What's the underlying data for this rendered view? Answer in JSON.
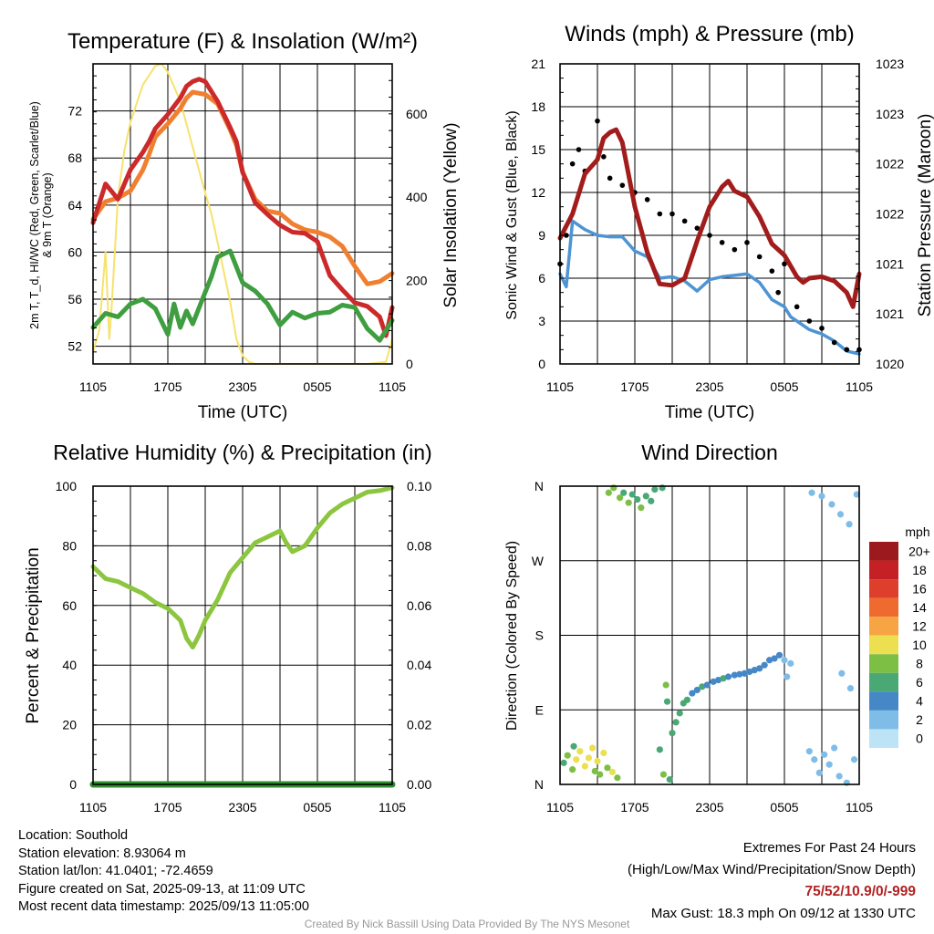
{
  "chart_data": [
    {
      "type": "line",
      "title": "Temperature (F) & Insolation (W/m²)",
      "xlabel": "Time (UTC)",
      "ylabel_left_lines": [
        "2m T, T_d, HI/WC (Red, Green, Scarlet/Blue)",
        "& 9m T (Orange)"
      ],
      "ylabel_right": "Solar Insolation (Yellow)",
      "x_ticks": [
        "1105",
        "1705",
        "2305",
        "0505",
        "1105"
      ],
      "y_ticks_left": [
        52,
        56,
        60,
        64,
        68,
        72
      ],
      "y_ticks_right": [
        0,
        200,
        400,
        600
      ],
      "ylim_left": [
        50.5,
        76
      ],
      "ylim_right": [
        0,
        720
      ],
      "series": [
        {
          "color": "#f08030",
          "x": [
            0,
            1,
            2,
            3,
            4,
            4.5,
            5,
            6,
            7,
            7.5,
            8,
            9,
            10,
            11,
            11.5,
            12,
            13,
            14,
            15,
            16,
            17,
            18,
            19,
            20,
            21,
            22,
            23,
            24
          ],
          "y": [
            62.8,
            64.3,
            64.6,
            65.2,
            67.0,
            68.3,
            69.8,
            70.9,
            72.2,
            73.1,
            73.6,
            73.4,
            72.6,
            70.4,
            69.1,
            66.8,
            64.5,
            63.5,
            63.3,
            62.4,
            61.9,
            61.7,
            61.3,
            60.5,
            58.8,
            57.3,
            57.5,
            58.2
          ]
        },
        {
          "color": "#cc2a2a",
          "x": [
            0,
            1,
            2,
            3,
            4,
            4.5,
            5,
            6,
            7,
            7.5,
            8,
            8.5,
            9,
            10,
            11,
            11.5,
            12,
            13,
            14,
            15,
            16,
            17,
            18,
            19,
            20,
            21,
            22,
            23,
            23.5,
            24
          ],
          "y": [
            62.5,
            65.8,
            64.5,
            67.0,
            68.5,
            69.4,
            70.5,
            71.7,
            73.1,
            74.1,
            74.5,
            74.7,
            74.5,
            72.8,
            70.6,
            69.4,
            66.8,
            64.2,
            63.2,
            62.3,
            61.7,
            61.6,
            60.9,
            58.0,
            56.8,
            55.7,
            55.4,
            54.5,
            52.9,
            55.3
          ]
        },
        {
          "color": "#3f9e3f",
          "x": [
            0,
            1,
            2,
            3,
            4,
            5,
            6,
            6.5,
            7,
            7.5,
            8,
            9,
            9.5,
            10,
            11,
            12,
            13,
            14,
            15,
            16,
            17,
            18,
            19,
            20,
            21,
            22,
            23,
            24
          ],
          "y": [
            53.6,
            54.8,
            54.5,
            55.6,
            56.0,
            55.2,
            53.0,
            55.6,
            53.6,
            55.0,
            53.9,
            56.6,
            57.9,
            59.6,
            60.1,
            57.4,
            56.7,
            55.6,
            53.8,
            54.9,
            54.4,
            54.8,
            54.9,
            55.5,
            55.3,
            53.5,
            52.5,
            54.2
          ]
        },
        {
          "color": "#f7e26b",
          "x": [
            0,
            0.5,
            1,
            1.3,
            1.5,
            2,
            2.5,
            3,
            4,
            5,
            5.5,
            6,
            7,
            8,
            9,
            9.5,
            10,
            11,
            11.5,
            12,
            12.5,
            13,
            14,
            18,
            22,
            23.5,
            24
          ],
          "y": [
            30,
            80,
            270,
            60,
            140,
            400,
            510,
            580,
            670,
            715,
            720,
            700,
            630,
            520,
            410,
            360,
            290,
            150,
            60,
            20,
            5,
            0,
            0,
            0,
            0,
            5,
            60
          ]
        }
      ]
    },
    {
      "type": "line",
      "title": "Winds (mph) & Pressure (mb)",
      "xlabel": "Time (UTC)",
      "ylabel_left": "Sonic Wind & Gust (Blue, Black)",
      "ylabel_right": "Station Pressure (Maroon)",
      "x_ticks": [
        "1105",
        "1705",
        "2305",
        "0505",
        "1105"
      ],
      "y_ticks_left": [
        0,
        3,
        6,
        9,
        12,
        15,
        18,
        21
      ],
      "y_ticks_right": [
        "1020",
        "1021",
        "1021",
        "1022",
        "1022",
        "1023",
        "1023"
      ],
      "ylim_left": [
        0,
        21
      ],
      "series": [
        {
          "color": "#4d94d4",
          "x": [
            0,
            0.5,
            1,
            2,
            3,
            4,
            5,
            6,
            7,
            8,
            9,
            10,
            11,
            12,
            13,
            14,
            15,
            16,
            17,
            18,
            18.5,
            19,
            20,
            21,
            22,
            23,
            24
          ],
          "y": [
            6.3,
            5.4,
            10.0,
            9.4,
            9.0,
            8.9,
            8.9,
            7.9,
            7.5,
            6.0,
            6.1,
            5.8,
            5.1,
            5.9,
            6.1,
            6.2,
            6.3,
            5.7,
            4.5,
            4.0,
            3.3,
            3.0,
            2.4,
            2.1,
            1.6,
            0.9,
            0.7
          ]
        },
        {
          "color": "#000000",
          "x": [
            0,
            0.5,
            1,
            1.5,
            2,
            3,
            3.5,
            4,
            5,
            6,
            7,
            8,
            9,
            10,
            11,
            12,
            13,
            14,
            15,
            16,
            17,
            17.5,
            18,
            19,
            20,
            21,
            22,
            23,
            24
          ],
          "y": [
            7.0,
            9.0,
            14.0,
            15.0,
            13.5,
            17.0,
            14.5,
            13.0,
            12.5,
            12.0,
            11.5,
            10.5,
            10.5,
            10.0,
            9.5,
            9.0,
            8.5,
            8.0,
            8.5,
            7.5,
            6.5,
            5.0,
            7.0,
            4.0,
            3.0,
            2.5,
            1.5,
            1.0,
            1.0
          ]
        },
        {
          "color": "#a21c1c",
          "x": [
            0,
            1,
            2,
            3,
            3.5,
            4,
            4.5,
            5,
            6,
            7,
            8,
            9,
            10,
            11,
            12,
            13,
            13.5,
            14,
            15,
            16,
            17,
            18,
            19,
            19.5,
            20,
            21,
            22,
            23,
            23.5,
            24
          ],
          "y": [
            8.8,
            10.5,
            13.3,
            14.3,
            15.8,
            16.2,
            16.4,
            15.5,
            11.0,
            7.8,
            5.6,
            5.5,
            6.0,
            8.6,
            11.0,
            12.4,
            12.8,
            12.1,
            11.7,
            10.3,
            8.4,
            7.6,
            6.1,
            5.7,
            6.0,
            6.1,
            5.8,
            5.0,
            4.0,
            6.3
          ]
        }
      ]
    },
    {
      "type": "line",
      "title": "Relative Humidity (%) & Precipitation (in)",
      "ylabel": "Percent & Precipitation",
      "x_ticks": [
        "1105",
        "1705",
        "2305",
        "0505",
        "1105"
      ],
      "y_ticks_left": [
        0,
        20,
        40,
        60,
        80,
        100
      ],
      "y_ticks_right": [
        "0.00",
        "0.02",
        "0.04",
        "0.06",
        "0.08",
        "0.10"
      ],
      "ylim_left": [
        0,
        100
      ],
      "series": [
        {
          "color": "#8cc63f",
          "x": [
            0,
            1,
            2,
            3,
            4,
            5,
            6,
            7,
            7.5,
            8,
            8.5,
            9,
            10,
            11,
            12,
            13,
            14,
            15,
            15.5,
            16,
            17,
            18,
            19,
            20,
            21,
            22,
            23,
            24
          ],
          "y": [
            73,
            69,
            68,
            66,
            64,
            61,
            59,
            55,
            49,
            46,
            50,
            55,
            62,
            71,
            76,
            81,
            83,
            85,
            81,
            78,
            80,
            86,
            91,
            94,
            96,
            98,
            98.5,
            99.5
          ]
        },
        {
          "color": "#2f8f2f",
          "x": [
            0,
            24
          ],
          "y": [
            0,
            0
          ]
        }
      ]
    },
    {
      "type": "scatter",
      "title": "Wind Direction",
      "ylabel": "Direction (Colored By Speed)",
      "x_ticks": [
        "1105",
        "1705",
        "2305",
        "0505",
        "1105"
      ],
      "y_ticks": [
        "N",
        "E",
        "S",
        "W",
        "N"
      ],
      "legend_unit": "mph",
      "legend_levels": [
        "0",
        "2",
        "4",
        "6",
        "8",
        "10",
        "12",
        "14",
        "16",
        "18",
        "20+"
      ],
      "legend_colors": [
        "#bde4f6",
        "#7fbde8",
        "#4688c6",
        "#4aa874",
        "#7dbf45",
        "#ecdf50",
        "#f6a444",
        "#ee6a2e",
        "#dd3f2c",
        "#c42026",
        "#9c1a1d"
      ],
      "points": [
        {
          "x": 0.3,
          "dir": 26,
          "speed": 6
        },
        {
          "x": 0.6,
          "dir": 35,
          "speed": 7
        },
        {
          "x": 1.0,
          "dir": 18,
          "speed": 8
        },
        {
          "x": 1.3,
          "dir": 30,
          "speed": 9
        },
        {
          "x": 1.6,
          "dir": 40,
          "speed": 10
        },
        {
          "x": 2.0,
          "dir": 22,
          "speed": 10
        },
        {
          "x": 2.3,
          "dir": 32,
          "speed": 9
        },
        {
          "x": 2.6,
          "dir": 44,
          "speed": 10
        },
        {
          "x": 3.0,
          "dir": 28,
          "speed": 10
        },
        {
          "x": 3.2,
          "dir": 12,
          "speed": 8
        },
        {
          "x": 3.5,
          "dir": 38,
          "speed": 9
        },
        {
          "x": 3.8,
          "dir": 20,
          "speed": 8
        },
        {
          "x": 4.2,
          "dir": 15,
          "speed": 9
        },
        {
          "x": 4.6,
          "dir": 8,
          "speed": 8
        },
        {
          "x": 1.1,
          "dir": 46,
          "speed": 6
        },
        {
          "x": 2.8,
          "dir": 16,
          "speed": 7
        },
        {
          "x": 3.9,
          "dir": 352,
          "speed": 8
        },
        {
          "x": 4.3,
          "dir": 358,
          "speed": 7
        },
        {
          "x": 4.8,
          "dir": 346,
          "speed": 8
        },
        {
          "x": 5.1,
          "dir": 352,
          "speed": 6
        },
        {
          "x": 5.5,
          "dir": 340,
          "speed": 7
        },
        {
          "x": 5.8,
          "dir": 350,
          "speed": 6
        },
        {
          "x": 6.2,
          "dir": 344,
          "speed": 6
        },
        {
          "x": 6.5,
          "dir": 334,
          "speed": 7
        },
        {
          "x": 6.9,
          "dir": 348,
          "speed": 5
        },
        {
          "x": 7.3,
          "dir": 342,
          "speed": 6
        },
        {
          "x": 7.6,
          "dir": 356,
          "speed": 6
        },
        {
          "x": 8.2,
          "dir": 358,
          "speed": 5
        },
        {
          "x": 8.0,
          "dir": 42,
          "speed": 6
        },
        {
          "x": 8.3,
          "dir": 12,
          "speed": 7
        },
        {
          "x": 8.5,
          "dir": 120,
          "speed": 7
        },
        {
          "x": 8.6,
          "dir": 100,
          "speed": 6
        },
        {
          "x": 8.8,
          "dir": 6,
          "speed": 6
        },
        {
          "x": 9.0,
          "dir": 62,
          "speed": 5
        },
        {
          "x": 9.3,
          "dir": 75,
          "speed": 6
        },
        {
          "x": 9.6,
          "dir": 86,
          "speed": 5
        },
        {
          "x": 9.9,
          "dir": 98,
          "speed": 5
        },
        {
          "x": 10.2,
          "dir": 102,
          "speed": 6
        },
        {
          "x": 10.6,
          "dir": 110,
          "speed": 4
        },
        {
          "x": 11.0,
          "dir": 114,
          "speed": 4
        },
        {
          "x": 11.4,
          "dir": 118,
          "speed": 5
        },
        {
          "x": 11.8,
          "dir": 120,
          "speed": 4
        },
        {
          "x": 12.3,
          "dir": 124,
          "speed": 4
        },
        {
          "x": 12.7,
          "dir": 126,
          "speed": 4
        },
        {
          "x": 13.1,
          "dir": 128,
          "speed": 5
        },
        {
          "x": 13.5,
          "dir": 130,
          "speed": 4
        },
        {
          "x": 14.0,
          "dir": 132,
          "speed": 4
        },
        {
          "x": 14.4,
          "dir": 133,
          "speed": 4
        },
        {
          "x": 14.8,
          "dir": 134,
          "speed": 4
        },
        {
          "x": 15.2,
          "dir": 136,
          "speed": 4
        },
        {
          "x": 15.6,
          "dir": 138,
          "speed": 4
        },
        {
          "x": 16.0,
          "dir": 140,
          "speed": 3
        },
        {
          "x": 16.4,
          "dir": 144,
          "speed": 3
        },
        {
          "x": 16.8,
          "dir": 150,
          "speed": 3
        },
        {
          "x": 17.2,
          "dir": 152,
          "speed": 3
        },
        {
          "x": 17.6,
          "dir": 156,
          "speed": 3
        },
        {
          "x": 18.0,
          "dir": 150,
          "speed": 2
        },
        {
          "x": 18.2,
          "dir": 130,
          "speed": 2
        },
        {
          "x": 18.5,
          "dir": 146,
          "speed": 1
        },
        {
          "x": 20.0,
          "dir": 40,
          "speed": 1
        },
        {
          "x": 20.4,
          "dir": 30,
          "speed": 1
        },
        {
          "x": 20.8,
          "dir": 14,
          "speed": 2
        },
        {
          "x": 21.2,
          "dir": 36,
          "speed": 1
        },
        {
          "x": 21.6,
          "dir": 24,
          "speed": 2
        },
        {
          "x": 22.0,
          "dir": 44,
          "speed": 1
        },
        {
          "x": 22.4,
          "dir": 10,
          "speed": 1
        },
        {
          "x": 23.0,
          "dir": 2,
          "speed": 1
        },
        {
          "x": 23.6,
          "dir": 30,
          "speed": 1
        },
        {
          "x": 20.2,
          "dir": 352,
          "speed": 1
        },
        {
          "x": 21.0,
          "dir": 348,
          "speed": 2
        },
        {
          "x": 21.8,
          "dir": 338,
          "speed": 1
        },
        {
          "x": 22.5,
          "dir": 326,
          "speed": 1
        },
        {
          "x": 23.2,
          "dir": 314,
          "speed": 1
        },
        {
          "x": 23.8,
          "dir": 350,
          "speed": 1
        },
        {
          "x": 22.6,
          "dir": 134,
          "speed": 1
        },
        {
          "x": 23.3,
          "dir": 116,
          "speed": 1
        }
      ]
    }
  ],
  "info_left": {
    "location": "Location: Southold",
    "elevation": "Station elevation: 8.93064 m",
    "latlon": "Station lat/lon: 41.0401; -72.4659",
    "created": "Figure created on Sat, 2025-09-13, at 11:09 UTC",
    "recent": "Most recent data timestamp: 2025/09/13 11:05:00"
  },
  "info_right": {
    "title": "Extremes For Past 24 Hours",
    "subtitle": "(High/Low/Max Wind/Precipitation/Snow Depth)",
    "values": "75/52/10.9/0/-999",
    "gust": "Max Gust: 18.3 mph On 09/12 at 1330 UTC"
  },
  "credit": "Created By Nick Bassill Using Data Provided By The NYS Mesonet"
}
